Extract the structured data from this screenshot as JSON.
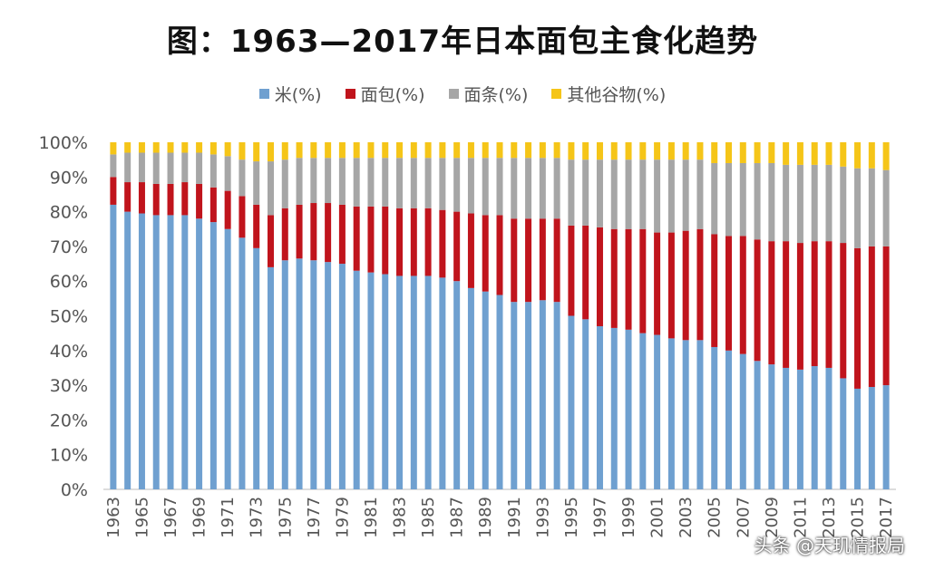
{
  "chart_data": {
    "type": "bar",
    "stacked": true,
    "title": "图：1963—2017年日本面包主食化趋势",
    "xlabel": "",
    "ylabel": "",
    "ylim": [
      0,
      100
    ],
    "y_ticks": [
      "0%",
      "10%",
      "20%",
      "30%",
      "40%",
      "50%",
      "60%",
      "70%",
      "80%",
      "90%",
      "100%"
    ],
    "grid": false,
    "legend_position": "top",
    "categories": [
      1963,
      1964,
      1965,
      1966,
      1967,
      1968,
      1969,
      1970,
      1971,
      1972,
      1973,
      1974,
      1975,
      1976,
      1977,
      1978,
      1979,
      1980,
      1981,
      1982,
      1983,
      1984,
      1985,
      1986,
      1987,
      1988,
      1989,
      1990,
      1991,
      1992,
      1993,
      1994,
      1995,
      1996,
      1997,
      1998,
      1999,
      2000,
      2001,
      2002,
      2003,
      2004,
      2005,
      2006,
      2007,
      2008,
      2009,
      2010,
      2011,
      2012,
      2013,
      2014,
      2015,
      2016,
      2017
    ],
    "x_tick_labels": [
      "1963",
      "1965",
      "1967",
      "1969",
      "1971",
      "1973",
      "1975",
      "1977",
      "1979",
      "1981",
      "1983",
      "1985",
      "1987",
      "1989",
      "1991",
      "1993",
      "1995",
      "1997",
      "1999",
      "2001",
      "2003",
      "2005",
      "2007",
      "2009",
      "2011",
      "2013",
      "2015",
      "2017"
    ],
    "series": [
      {
        "name": "米(%)",
        "color": "#6fa0d0",
        "values": [
          82,
          80,
          79.5,
          79,
          79,
          79,
          78,
          77,
          75,
          72.5,
          69.5,
          64,
          66,
          66.5,
          66,
          65.5,
          65,
          63,
          62.5,
          62,
          61.5,
          61.5,
          61.5,
          61,
          60,
          58,
          57,
          56,
          54,
          54,
          54.5,
          54,
          50,
          49,
          47,
          46.5,
          46,
          45,
          44.5,
          43.5,
          43,
          43,
          41,
          40,
          39,
          37,
          36,
          35,
          34.5,
          35.5,
          35,
          32,
          29,
          29.5,
          30
        ]
      },
      {
        "name": "面包(%)",
        "color": "#c0141c",
        "values": [
          8,
          8.5,
          9,
          9,
          9,
          9.5,
          10,
          10,
          11,
          12,
          12.5,
          15,
          15,
          15.5,
          16.5,
          17,
          17,
          18.5,
          19,
          19.5,
          19.5,
          19.5,
          19.5,
          19.5,
          20,
          21.5,
          22,
          23,
          24,
          24,
          23.5,
          24,
          26,
          27,
          28.5,
          28.5,
          29,
          30,
          29.5,
          30.5,
          31.5,
          32,
          32.5,
          33,
          34,
          35,
          35.5,
          36.5,
          36.5,
          36,
          36.5,
          39,
          40.5,
          40.5,
          40
        ]
      },
      {
        "name": "面条(%)",
        "color": "#a6a6a6",
        "values": [
          6.5,
          8.5,
          8.5,
          9,
          9,
          8.5,
          9,
          9.5,
          10,
          10.5,
          12.5,
          15.5,
          14,
          13.5,
          13,
          13,
          13.5,
          14,
          14,
          14,
          14.5,
          14.5,
          14.5,
          15,
          15.5,
          16,
          16.5,
          16.5,
          17.5,
          17.5,
          17.5,
          17.5,
          19,
          19,
          19.5,
          20,
          20,
          20,
          21,
          21,
          20.5,
          20,
          20.5,
          21,
          21,
          22,
          22.5,
          22,
          22.5,
          22,
          22,
          22,
          23,
          22.5,
          22
        ]
      },
      {
        "name": "其他谷物(%)",
        "color": "#f5c518",
        "values": [
          3.5,
          3,
          3,
          3,
          3,
          3,
          3,
          3.5,
          4,
          5,
          5.5,
          5.5,
          5,
          4.5,
          4.5,
          4.5,
          4.5,
          4.5,
          4.5,
          4.5,
          4.5,
          4.5,
          4.5,
          4.5,
          4.5,
          4.5,
          4.5,
          4.5,
          4.5,
          4.5,
          4.5,
          4.5,
          5,
          5,
          5,
          5,
          5,
          5,
          5,
          5,
          5,
          5,
          6,
          6,
          6,
          6,
          6,
          6.5,
          6.5,
          6.5,
          6.5,
          7,
          7.5,
          7.5,
          8
        ]
      }
    ]
  },
  "watermark": "头条 @天玑情报局"
}
